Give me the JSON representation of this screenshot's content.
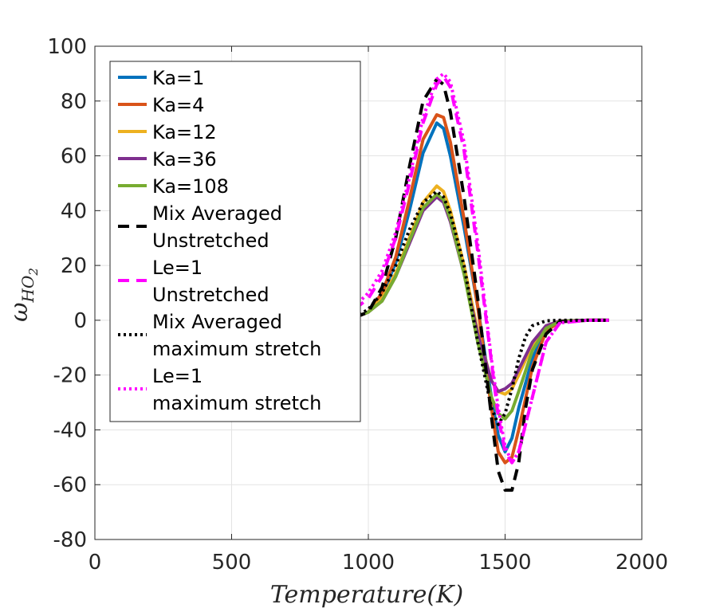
{
  "chart_data": {
    "type": "line",
    "xlabel": "Temperature(K)",
    "ylabel": {
      "base": "ω",
      "accent": "˙",
      "subscript": "HO",
      "subscript_index": "2"
    },
    "xlim": [
      0,
      2000
    ],
    "ylim": [
      -80,
      100
    ],
    "xticks": [
      0,
      500,
      1000,
      1500,
      2000
    ],
    "yticks": [
      -80,
      -60,
      -40,
      -20,
      0,
      20,
      40,
      60,
      80,
      100
    ],
    "xtick_labels": [
      "0",
      "500",
      "1000",
      "1500",
      "2000"
    ],
    "ytick_labels": [
      "-80",
      "-60",
      "-40",
      "-20",
      "0",
      "20",
      "40",
      "60",
      "80",
      "100"
    ],
    "grid": true,
    "legend_position": "top-left",
    "series": [
      {
        "name": "Ka=1",
        "legend_lines": [
          "Ka=1"
        ],
        "color": "#0072BD",
        "style": "solid",
        "x": [
          950,
          1000,
          1050,
          1100,
          1150,
          1200,
          1250,
          1275,
          1300,
          1350,
          1400,
          1450,
          1475,
          1500,
          1525,
          1550,
          1600,
          1650,
          1700,
          1800,
          1880
        ],
        "y": [
          1,
          3,
          9,
          21,
          40,
          61,
          72,
          70,
          60,
          34,
          5,
          -28,
          -42,
          -48,
          -43,
          -32,
          -14,
          -3,
          -0.5,
          0,
          0
        ]
      },
      {
        "name": "Ka=4",
        "legend_lines": [
          "Ka=4"
        ],
        "color": "#D95319",
        "style": "solid",
        "x": [
          950,
          1000,
          1050,
          1100,
          1150,
          1200,
          1250,
          1275,
          1300,
          1350,
          1400,
          1450,
          1475,
          1500,
          1525,
          1550,
          1600,
          1650,
          1700,
          1800,
          1880
        ],
        "y": [
          1,
          3,
          10,
          23,
          44,
          66,
          75,
          74,
          65,
          37,
          5,
          -32,
          -48,
          -52,
          -50,
          -40,
          -17,
          -4,
          -0.5,
          0,
          0
        ]
      },
      {
        "name": "Ka=12",
        "legend_lines": [
          "Ka=12"
        ],
        "color": "#EDB120",
        "style": "solid",
        "x": [
          950,
          1000,
          1050,
          1100,
          1150,
          1200,
          1250,
          1275,
          1300,
          1350,
          1400,
          1450,
          1475,
          1500,
          1525,
          1550,
          1600,
          1650,
          1700,
          1800,
          1880
        ],
        "y": [
          1,
          3,
          8,
          17,
          30,
          43,
          49,
          47,
          40,
          20,
          -4,
          -22,
          -26,
          -27,
          -25,
          -20,
          -9,
          -2,
          -0.3,
          0,
          0
        ]
      },
      {
        "name": "Ka=36",
        "legend_lines": [
          "Ka=36"
        ],
        "color": "#7E2F8E",
        "style": "solid",
        "x": [
          950,
          1000,
          1050,
          1100,
          1150,
          1200,
          1250,
          1275,
          1300,
          1350,
          1400,
          1450,
          1475,
          1500,
          1525,
          1550,
          1600,
          1650,
          1700,
          1800,
          1880
        ],
        "y": [
          1,
          3,
          7,
          16,
          28,
          40,
          45,
          43,
          36,
          17,
          -5,
          -22,
          -26,
          -25,
          -23,
          -18,
          -8,
          -2,
          -0.3,
          0,
          0
        ]
      },
      {
        "name": "Ka=108",
        "legend_lines": [
          "Ka=108"
        ],
        "color": "#77AC30",
        "style": "solid",
        "x": [
          950,
          1000,
          1050,
          1100,
          1150,
          1200,
          1250,
          1275,
          1300,
          1350,
          1400,
          1450,
          1475,
          1500,
          1525,
          1550,
          1600,
          1650,
          1700,
          1800,
          1880
        ],
        "y": [
          1,
          3,
          7,
          16,
          29,
          41,
          46,
          44,
          37,
          17,
          -8,
          -28,
          -34,
          -36,
          -33,
          -26,
          -11,
          -3,
          -0.4,
          0,
          0
        ]
      },
      {
        "name": "Mix Averaged Unstretched",
        "legend_lines": [
          "Mix Averaged",
          "Unstretched"
        ],
        "color": "#000000",
        "style": "dashed",
        "x": [
          950,
          1000,
          1050,
          1100,
          1150,
          1200,
          1250,
          1275,
          1300,
          1350,
          1400,
          1450,
          1475,
          1500,
          1525,
          1550,
          1575,
          1600,
          1650,
          1700,
          1800,
          1880
        ],
        "y": [
          1,
          3,
          12,
          30,
          56,
          80,
          88,
          86,
          76,
          45,
          8,
          -35,
          -55,
          -62,
          -62,
          -52,
          -32,
          -18,
          -5,
          -0.5,
          0,
          0
        ]
      },
      {
        "name": "Le=1 Unstretched",
        "legend_lines": [
          "Le=1",
          "Unstretched"
        ],
        "color": "#FF00FF",
        "style": "dashed",
        "x": [
          950,
          1000,
          1050,
          1100,
          1150,
          1200,
          1250,
          1275,
          1300,
          1350,
          1400,
          1450,
          1475,
          1500,
          1525,
          1550,
          1600,
          1650,
          1700,
          1800,
          1880
        ],
        "y": [
          4,
          8,
          16,
          30,
          50,
          72,
          86,
          89,
          85,
          62,
          25,
          -15,
          -35,
          -48,
          -52,
          -48,
          -28,
          -8,
          -1,
          0,
          0
        ]
      },
      {
        "name": "Mix Averaged maximum stretch",
        "legend_lines": [
          "Mix Averaged",
          "maximum stretch"
        ],
        "color": "#000000",
        "style": "dotted",
        "x": [
          950,
          1000,
          1050,
          1100,
          1150,
          1200,
          1250,
          1275,
          1300,
          1350,
          1400,
          1450,
          1475,
          1500,
          1525,
          1550,
          1575,
          1600,
          1650,
          1700,
          1800,
          1880
        ],
        "y": [
          1,
          4,
          10,
          20,
          33,
          43,
          47,
          45,
          39,
          20,
          -8,
          -32,
          -38,
          -34,
          -25,
          -14,
          -6,
          -2,
          -0.2,
          0,
          0,
          0
        ]
      },
      {
        "name": "Le=1 maximum stretch",
        "legend_lines": [
          "Le=1",
          "maximum stretch"
        ],
        "color": "#FF00FF",
        "style": "dotted",
        "x": [
          900,
          950,
          1000,
          1050,
          1100,
          1150,
          1200,
          1250,
          1275,
          1300,
          1350,
          1400,
          1450,
          1475,
          1500,
          1525,
          1550,
          1600,
          1650,
          1700,
          1800,
          1880
        ],
        "y": [
          1,
          5,
          10,
          18,
          32,
          52,
          74,
          88,
          90,
          87,
          65,
          28,
          -14,
          -32,
          -46,
          -52,
          -48,
          -28,
          -8,
          -1,
          0,
          0
        ]
      }
    ]
  }
}
